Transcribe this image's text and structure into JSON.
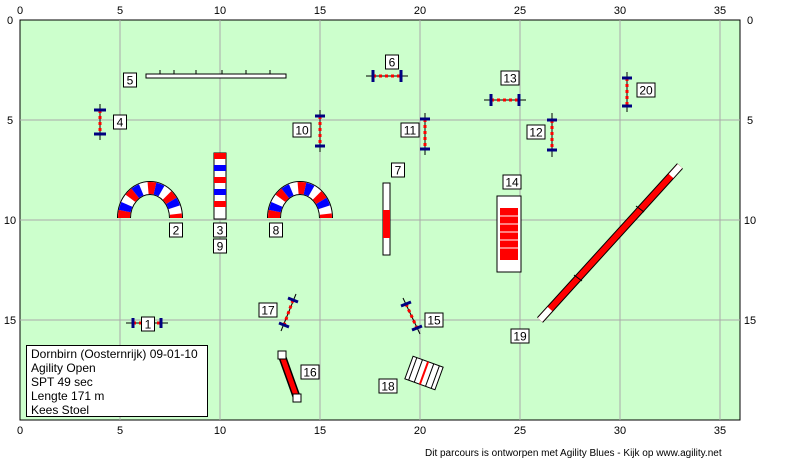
{
  "axis": {
    "x_ticks": [
      "0",
      "5",
      "10",
      "15",
      "20",
      "25",
      "30",
      "35"
    ],
    "y_ticks": [
      "0",
      "5",
      "10",
      "15"
    ]
  },
  "obstacles": [
    {
      "num": "1",
      "label": "1",
      "x": 6.4,
      "y": 15.2
    },
    {
      "num": "2",
      "label": "2",
      "x": 7.8,
      "y": 10.5
    },
    {
      "num": "3",
      "label": "3",
      "x": 10.0,
      "y": 10.5
    },
    {
      "num": "4",
      "label": "4",
      "x": 5.0,
      "y": 5.1
    },
    {
      "num": "5",
      "label": "5",
      "x": 5.5,
      "y": 3.0
    },
    {
      "num": "6",
      "label": "6",
      "x": 18.6,
      "y": 2.1
    },
    {
      "num": "7",
      "label": "7",
      "x": 18.9,
      "y": 7.5
    },
    {
      "num": "8",
      "label": "8",
      "x": 12.8,
      "y": 10.5
    },
    {
      "num": "9",
      "label": "9",
      "x": 10.0,
      "y": 11.3
    },
    {
      "num": "10",
      "label": "10",
      "x": 14.1,
      "y": 5.5
    },
    {
      "num": "11",
      "label": "11",
      "x": 19.5,
      "y": 5.5
    },
    {
      "num": "12",
      "label": "12",
      "x": 25.8,
      "y": 5.6
    },
    {
      "num": "13",
      "label": "13",
      "x": 24.5,
      "y": 2.9
    },
    {
      "num": "14",
      "label": "14",
      "x": 24.6,
      "y": 8.1
    },
    {
      "num": "15",
      "label": "15",
      "x": 20.7,
      "y": 15.0
    },
    {
      "num": "16",
      "label": "16",
      "x": 14.5,
      "y": 17.6
    },
    {
      "num": "17",
      "label": "17",
      "x": 12.4,
      "y": 14.5
    },
    {
      "num": "18",
      "label": "18",
      "x": 18.4,
      "y": 18.3
    },
    {
      "num": "19",
      "label": "19",
      "x": 25.0,
      "y": 15.8
    },
    {
      "num": "20",
      "label": "20",
      "x": 31.3,
      "y": 3.5
    }
  ],
  "info": {
    "location": "Dornbirn (Oosternrijk) 09-01-10",
    "class": "Agility Open",
    "spt": "SPT 49 sec",
    "length": "Lengte 171 m",
    "judge": "Kees Stoel"
  },
  "footer": {
    "credit": "Dit parcours is ontworpen met Agility Blues - Kijk op www.agility.net"
  },
  "colors": {
    "field": "#ccffcc",
    "grid": "#aaaaaa",
    "red": "#ff0000",
    "blue": "#0000ff",
    "navy": "#000080"
  }
}
